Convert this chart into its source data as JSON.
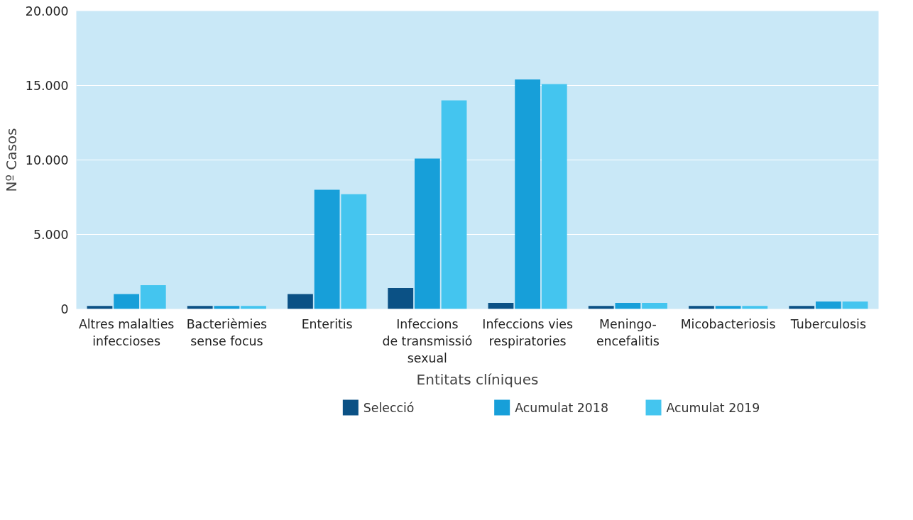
{
  "chart_data": {
    "type": "bar",
    "xlabel": "Entitats clíniques",
    "ylabel": "Nº Casos",
    "categories": [
      "Altres malalties\ninfeccioses",
      "Bacterièmies\nsense focus",
      "Enteritis",
      "Infeccions\nde transmissió\nsexual",
      "Infeccions vies\nrespiratories",
      "Meningo-\nencefalitis",
      "Micobacteriosis",
      "Tuberculosis"
    ],
    "series": [
      {
        "name": "Selecció",
        "color": "#0b5185",
        "values": [
          200,
          200,
          1000,
          1400,
          400,
          200,
          200,
          200
        ]
      },
      {
        "name": "Acumulat 2018",
        "color": "#179fd9",
        "values": [
          1000,
          200,
          8000,
          10100,
          15400,
          400,
          200,
          500
        ]
      },
      {
        "name": "Acumulat 2019",
        "color": "#44c5ef",
        "values": [
          1600,
          200,
          7700,
          14000,
          15100,
          400,
          200,
          500
        ]
      }
    ],
    "ylim": [
      0,
      20000
    ],
    "yticks": [
      0,
      {
        "value": 5000,
        "label": "5.000"
      },
      {
        "value": 10000,
        "label": "10.000"
      },
      {
        "value": 15000,
        "label": "15.000"
      },
      {
        "value": 20000,
        "label": "20.000"
      }
    ],
    "grid": "y",
    "legend": "bottom"
  }
}
